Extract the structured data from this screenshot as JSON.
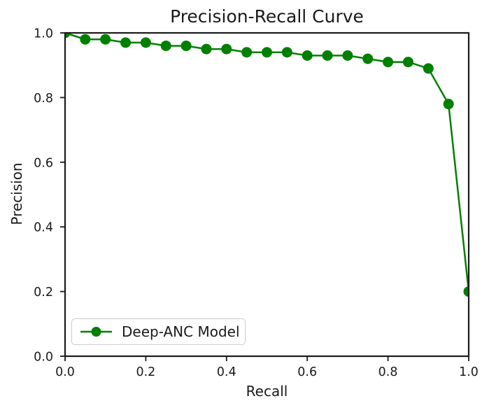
{
  "chart_data": {
    "type": "line",
    "title": "Precision-Recall Curve",
    "xlabel": "Recall",
    "ylabel": "Precision",
    "xlim": [
      0.0,
      1.0
    ],
    "ylim": [
      0.0,
      1.0
    ],
    "xticks": [
      0.0,
      0.2,
      0.4,
      0.6,
      0.8,
      1.0
    ],
    "yticks": [
      0.0,
      0.2,
      0.4,
      0.6,
      0.8,
      1.0
    ],
    "grid": false,
    "legend": {
      "position": "lower-left",
      "entries": [
        "Deep-ANC Model"
      ]
    },
    "colors": {
      "series": "#008000",
      "axis": "#1a1a1a",
      "text": "#1a1a1a",
      "legend_border": "#cccccc",
      "background": "#ffffff"
    },
    "series": [
      {
        "name": "Deep-ANC Model",
        "color": "#008000",
        "marker": "circle",
        "x": [
          0.0,
          0.05,
          0.1,
          0.15,
          0.2,
          0.25,
          0.3,
          0.35,
          0.4,
          0.45,
          0.5,
          0.55,
          0.6,
          0.65,
          0.7,
          0.75,
          0.8,
          0.85,
          0.9,
          0.95,
          1.0
        ],
        "y": [
          1.0,
          0.98,
          0.98,
          0.97,
          0.97,
          0.96,
          0.96,
          0.95,
          0.95,
          0.94,
          0.94,
          0.94,
          0.93,
          0.93,
          0.93,
          0.92,
          0.91,
          0.91,
          0.89,
          0.78,
          0.2
        ]
      }
    ]
  }
}
